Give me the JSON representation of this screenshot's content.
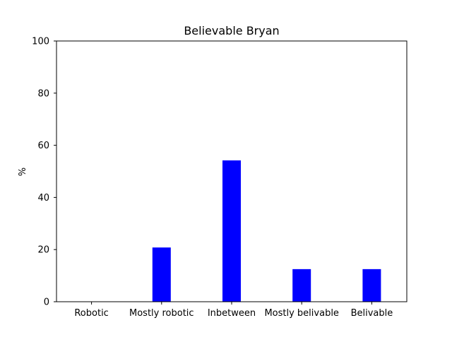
{
  "chart_data": {
    "type": "bar",
    "title": "Believable Bryan",
    "xlabel": "",
    "ylabel": "%",
    "categories": [
      "Robotic",
      "Mostly robotic",
      "Inbetween",
      "Mostly belivable",
      "Belivable"
    ],
    "values": [
      0,
      20.8,
      54.2,
      12.5,
      12.5
    ],
    "ylim": [
      0,
      100
    ],
    "yticks": [
      0,
      20,
      40,
      60,
      80,
      100
    ],
    "bar_color": "#0000ff",
    "grid": false,
    "legend": "none"
  }
}
